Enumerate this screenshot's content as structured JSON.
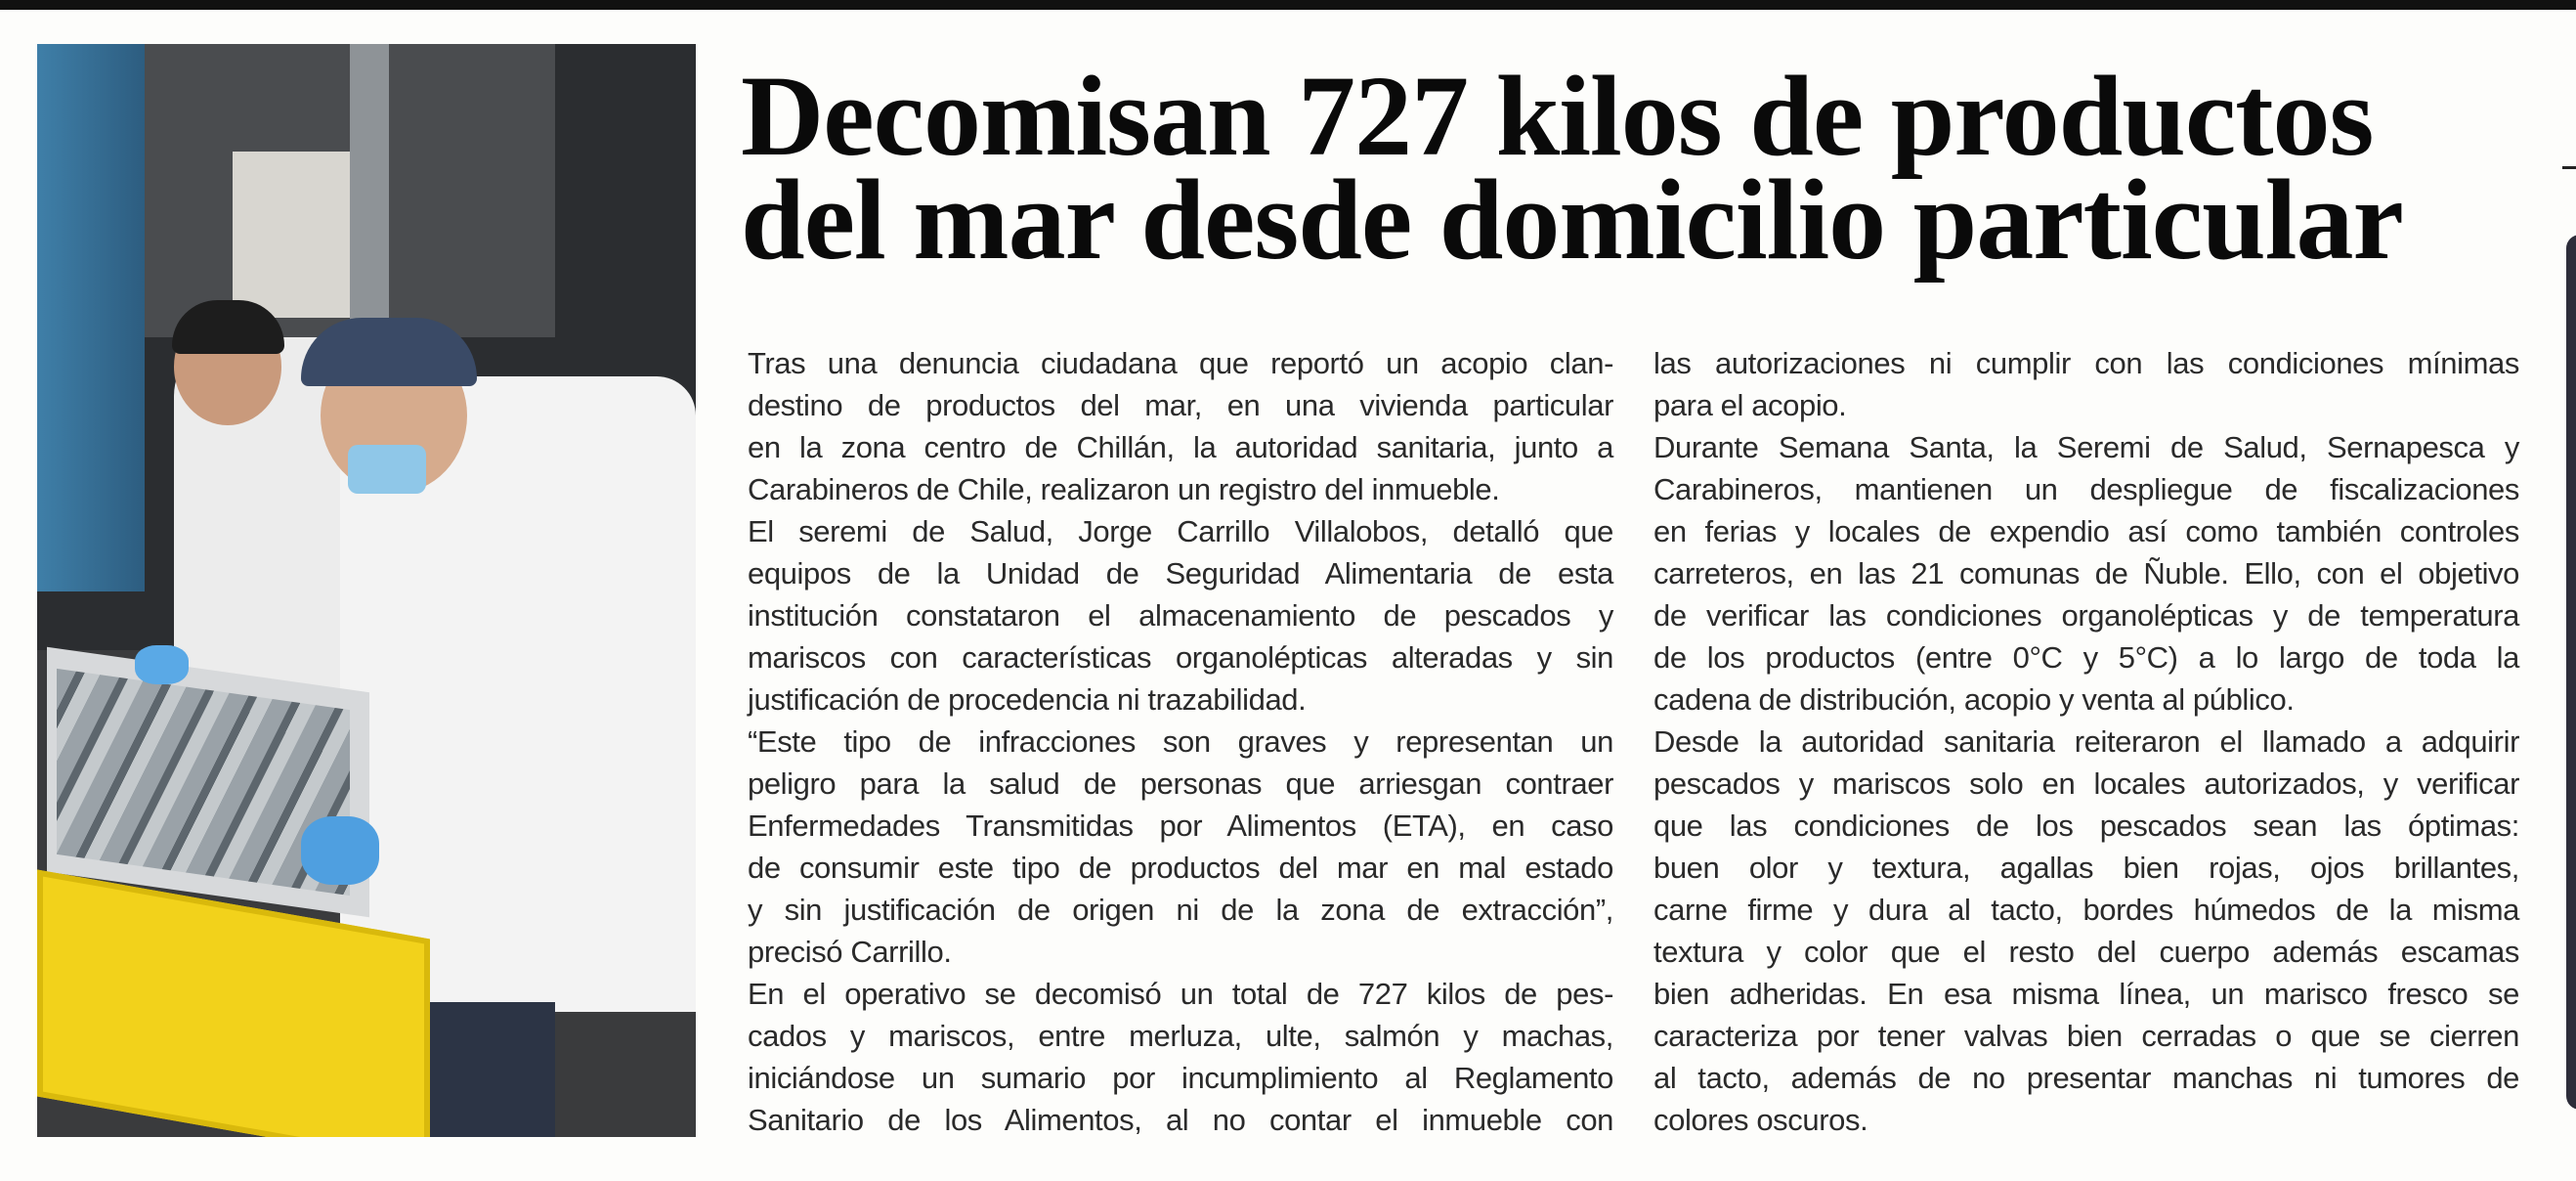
{
  "headline": {
    "lines": [
      "Decomisan 727 kilos de productos",
      "del mar desde domicilio particular"
    ]
  },
  "photo": {
    "description_icon": "photo-inspectors-fish-crate",
    "colors": {
      "crate": "#f2d21b",
      "coat": "#f1f1f1",
      "gloves": "#5aa9e6",
      "background": "#2b2d30"
    }
  },
  "body": {
    "column1": [
      {
        "text": "Tras una denuncia ciudadana que reportó un acopio clan-",
        "end": false
      },
      {
        "text": "destino de productos del mar, en una vivienda particular",
        "end": false
      },
      {
        "text": "en la zona centro de Chillán, la autoridad sanitaria, junto a",
        "end": false
      },
      {
        "text": "Carabineros de Chile, realizaron un registro del inmueble.",
        "end": true
      },
      {
        "text": "El seremi de Salud, Jorge Carrillo Villalobos, detalló que",
        "end": false
      },
      {
        "text": "equipos de la Unidad de Seguridad Alimentaria de esta",
        "end": false
      },
      {
        "text": "institución constataron el almacenamiento de pescados y",
        "end": false
      },
      {
        "text": "mariscos con características organolépticas alteradas y sin",
        "end": false
      },
      {
        "text": "justificación de procedencia ni trazabilidad.",
        "end": true
      },
      {
        "text": "“Este tipo de infracciones son graves y representan un",
        "end": false
      },
      {
        "text": "peligro para la salud de personas que arriesgan contraer",
        "end": false
      },
      {
        "text": "Enfermedades Transmitidas por Alimentos (ETA), en caso",
        "end": false
      },
      {
        "text": "de consumir este tipo de productos del mar en mal estado",
        "end": false
      },
      {
        "text": "y sin justificación de origen ni de la zona de extracción”,",
        "end": false
      },
      {
        "text": "precisó Carrillo.",
        "end": true
      },
      {
        "text": "En el operativo se decomisó un total de 727 kilos de pes-",
        "end": false
      },
      {
        "text": "cados y mariscos, entre merluza, ulte, salmón y machas,",
        "end": false
      },
      {
        "text": "iniciándose un sumario por incumplimiento al Reglamento",
        "end": false
      },
      {
        "text": "Sanitario de los Alimentos, al no contar el inmueble con",
        "end": false
      }
    ],
    "column2": [
      {
        "text": "las autorizaciones ni cumplir con las condiciones mínimas",
        "end": false
      },
      {
        "text": "para el acopio.",
        "end": true
      },
      {
        "text": "Durante Semana Santa, la Seremi de Salud, Sernapesca y",
        "end": false
      },
      {
        "text": "Carabineros, mantienen un despliegue de fiscalizaciones",
        "end": false
      },
      {
        "text": "en ferias y locales de expendio así como también controles",
        "end": false
      },
      {
        "text": "carreteros, en las 21 comunas de Ñuble. Ello, con el objetivo",
        "end": false
      },
      {
        "text": "de verificar las condiciones organolépticas y de temperatura",
        "end": false
      },
      {
        "text": "de los productos (entre 0°C y 5°C) a lo largo de toda la",
        "end": false
      },
      {
        "text": "cadena de distribución, acopio y venta al público.",
        "end": true
      },
      {
        "text": "Desde la autoridad sanitaria reiteraron el llamado a adquirir",
        "end": false
      },
      {
        "text": "pescados y mariscos solo en locales autorizados, y verificar",
        "end": false
      },
      {
        "text": "que las condiciones de los pescados sean las óptimas:",
        "end": false
      },
      {
        "text": "buen olor y textura, agallas bien rojas, ojos brillantes,",
        "end": false
      },
      {
        "text": "carne firme y dura al tacto, bordes húmedos de la misma",
        "end": false
      },
      {
        "text": "textura y color que el resto del cuerpo además escamas",
        "end": false
      },
      {
        "text": "bien adheridas. En esa misma línea, un marisco fresco se",
        "end": false
      },
      {
        "text": "caracteriza por tener valvas bien cerradas o que se cierren",
        "end": false
      },
      {
        "text": "al tacto, además de no presentar manchas ni tumores de",
        "end": false
      },
      {
        "text": "colores oscuros.",
        "end": true
      }
    ]
  }
}
